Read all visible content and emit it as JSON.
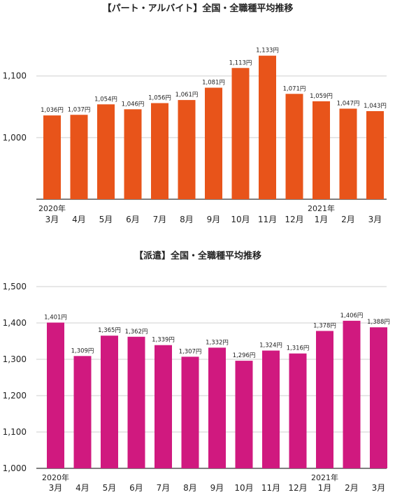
{
  "chart_data": [
    {
      "type": "bar",
      "title": "【パート・アルバイト】全国・全職種平均推移",
      "categories": [
        "3月",
        "4月",
        "5月",
        "6月",
        "7月",
        "8月",
        "9月",
        "10月",
        "11月",
        "12月",
        "1月",
        "2月",
        "3月"
      ],
      "year_labels": [
        {
          "index": 0,
          "text": "2020年"
        },
        {
          "index": 10,
          "text": "2021年"
        }
      ],
      "values": [
        1036,
        1037,
        1054,
        1046,
        1056,
        1061,
        1081,
        1113,
        1133,
        1071,
        1059,
        1047,
        1043
      ],
      "value_labels": [
        "1,036円",
        "1,037円",
        "1,054円",
        "1,046円",
        "1,056円",
        "1,061円",
        "1,081円",
        "1,113円",
        "1,133円",
        "1,071円",
        "1,059円",
        "1,047円",
        "1,043円"
      ],
      "yticks": [
        1000,
        1100
      ],
      "ytick_labels": [
        "1,000",
        "1,100"
      ],
      "ylim": [
        900,
        1195
      ],
      "color": "#e8541a",
      "grid": true
    },
    {
      "type": "bar",
      "title": "【派遣】全国・全職種平均推移",
      "categories": [
        "3月",
        "4月",
        "5月",
        "6月",
        "7月",
        "8月",
        "9月",
        "10月",
        "11月",
        "12月",
        "1月",
        "2月",
        "3月"
      ],
      "year_labels": [
        {
          "index": 0,
          "text": "2020年"
        },
        {
          "index": 10,
          "text": "2021年"
        }
      ],
      "values": [
        1401,
        1309,
        1365,
        1362,
        1339,
        1307,
        1332,
        1296,
        1324,
        1316,
        1378,
        1406,
        1388
      ],
      "value_labels": [
        "1,401円",
        "1,309円",
        "1,365円",
        "1,362円",
        "1,339円",
        "1,307円",
        "1,332円",
        "1,296円",
        "1,324円",
        "1,316円",
        "1,378円",
        "1,406円",
        "1,388円"
      ],
      "yticks": [
        1000,
        1100,
        1200,
        1300,
        1400,
        1500
      ],
      "ytick_labels": [
        "1,000",
        "1,100",
        "1,200",
        "1,300",
        "1,400",
        "1,500"
      ],
      "ylim": [
        1000,
        1500
      ],
      "color": "#d0197f",
      "grid": true
    }
  ]
}
